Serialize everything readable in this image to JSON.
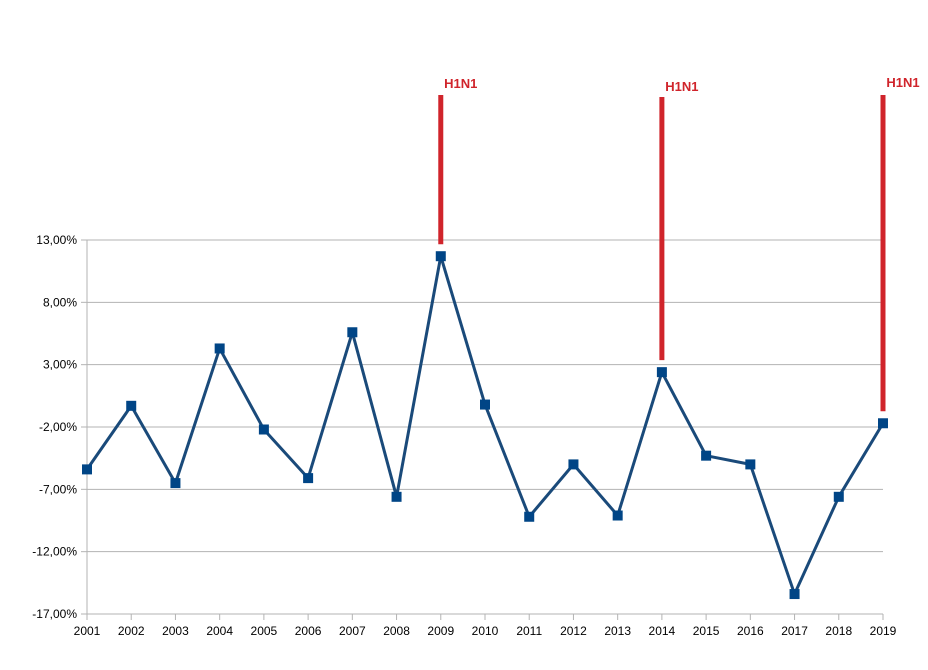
{
  "chart_data": {
    "type": "line",
    "title": "",
    "xlabel": "",
    "ylabel": "",
    "x": [
      "2001",
      "2002",
      "2003",
      "2004",
      "2005",
      "2006",
      "2007",
      "2008",
      "2009",
      "2010",
      "2011",
      "2012",
      "2013",
      "2014",
      "2015",
      "2016",
      "2017",
      "2018",
      "2019"
    ],
    "series": [
      {
        "name": "",
        "values": [
          -5.4,
          -0.3,
          -6.5,
          4.3,
          -2.2,
          -6.1,
          5.6,
          -7.6,
          11.7,
          -0.2,
          -9.2,
          -5.0,
          -9.1,
          2.4,
          -4.3,
          -5.0,
          -15.4,
          -7.6,
          -1.7
        ],
        "color": "#1a4a7a"
      }
    ],
    "yticks": [
      "13,00%",
      "8,00%",
      "3,00%",
      "-2,00%",
      "-7,00%",
      "-12,00%",
      "-17,00%"
    ],
    "ytick_values": [
      13,
      8,
      3,
      -2,
      -7,
      -12,
      -17
    ],
    "ylim": [
      -17,
      13
    ],
    "grid": true,
    "annotations": [
      {
        "text": "H1N1",
        "x": "2009",
        "color": "#d0242b"
      },
      {
        "text": "H1N1",
        "x": "2014",
        "color": "#d0242b"
      },
      {
        "text": "H1N1",
        "x": "2019",
        "color": "#d0242b"
      }
    ]
  }
}
